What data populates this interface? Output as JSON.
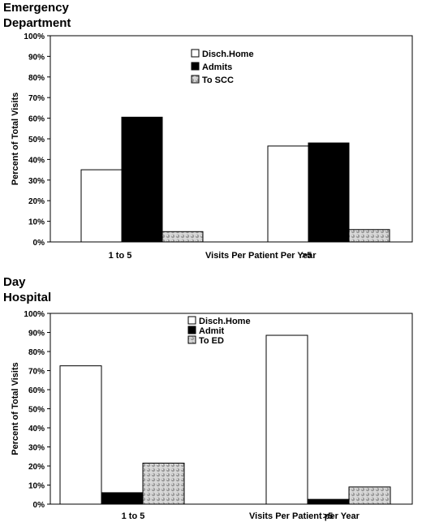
{
  "chart_data": [
    {
      "type": "bar",
      "title": "Emergency\nDepartment",
      "xlabel": "Visits Per Patient Per Year",
      "ylabel": "Percent of Total Visits",
      "categories": [
        "1 to 5",
        ">5"
      ],
      "yticks": [
        "0%",
        "10%",
        "20%",
        "30%",
        "40%",
        "50%",
        "60%",
        "70%",
        "80%",
        "90%",
        "100%"
      ],
      "ylim": [
        0,
        100
      ],
      "series": [
        {
          "name": "Disch.Home",
          "values": [
            35,
            46.5
          ],
          "fill": "white"
        },
        {
          "name": "Admits",
          "values": [
            60.5,
            48
          ],
          "fill": "black"
        },
        {
          "name": "To SCC",
          "values": [
            5,
            6
          ],
          "fill": "dots"
        }
      ],
      "legend_position": "top-center",
      "grid": false
    },
    {
      "type": "bar",
      "title": "Day\nHospital",
      "xlabel": "Visits Per Patient per Year",
      "ylabel": "Percent of Total Visits",
      "categories": [
        "1 to 5",
        ">5"
      ],
      "yticks": [
        "0%",
        "10%",
        "20%",
        "30%",
        "40%",
        "50%",
        "60%",
        "70%",
        "80%",
        "90%",
        "100%"
      ],
      "ylim": [
        0,
        100
      ],
      "series": [
        {
          "name": "Disch.Home",
          "values": [
            72.5,
            88.5
          ],
          "fill": "white"
        },
        {
          "name": "Admit",
          "values": [
            6,
            2.5
          ],
          "fill": "black"
        },
        {
          "name": "To ED",
          "values": [
            21.5,
            9
          ],
          "fill": "dots"
        }
      ],
      "legend_position": "top-center",
      "grid": false
    }
  ]
}
